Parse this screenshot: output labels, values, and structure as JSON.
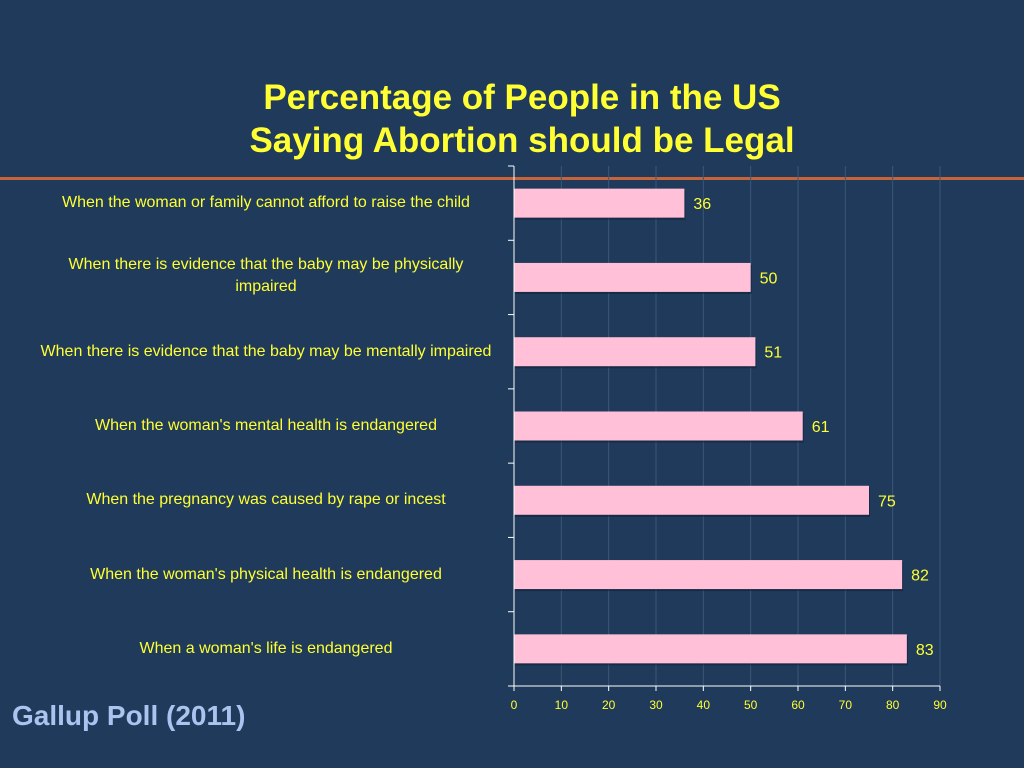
{
  "title": {
    "line1": "Percentage of People in the US",
    "line2": "Saying Abortion should be Legal"
  },
  "source": "Gallup Poll (2011)",
  "colors": {
    "background": "#1f3a5a",
    "title": "#ffff33",
    "bar_fill": "#ffc0d8",
    "rule": "#c8643a",
    "source": "#aac3ef"
  },
  "chart_data": {
    "type": "bar",
    "orientation": "horizontal",
    "categories": [
      "When the woman or family cannot afford to raise the child",
      "When there is evidence that the baby may be physically impaired",
      "When there is evidence that the baby may be mentally impaired",
      "When the woman's mental health is endangered",
      "When the pregnancy was caused by rape or incest",
      "When the woman's physical health is endangered",
      "When a woman's life is endangered"
    ],
    "values": [
      36,
      50,
      51,
      61,
      75,
      82,
      83
    ],
    "data_labels": [
      "36",
      "50",
      "51",
      "61",
      "75",
      "82",
      "83"
    ],
    "xlim": [
      0,
      90
    ],
    "x_ticks": [
      "0",
      "10",
      "20",
      "30",
      "40",
      "50",
      "60",
      "70",
      "80",
      "90"
    ],
    "grid": true,
    "legend": "none"
  }
}
